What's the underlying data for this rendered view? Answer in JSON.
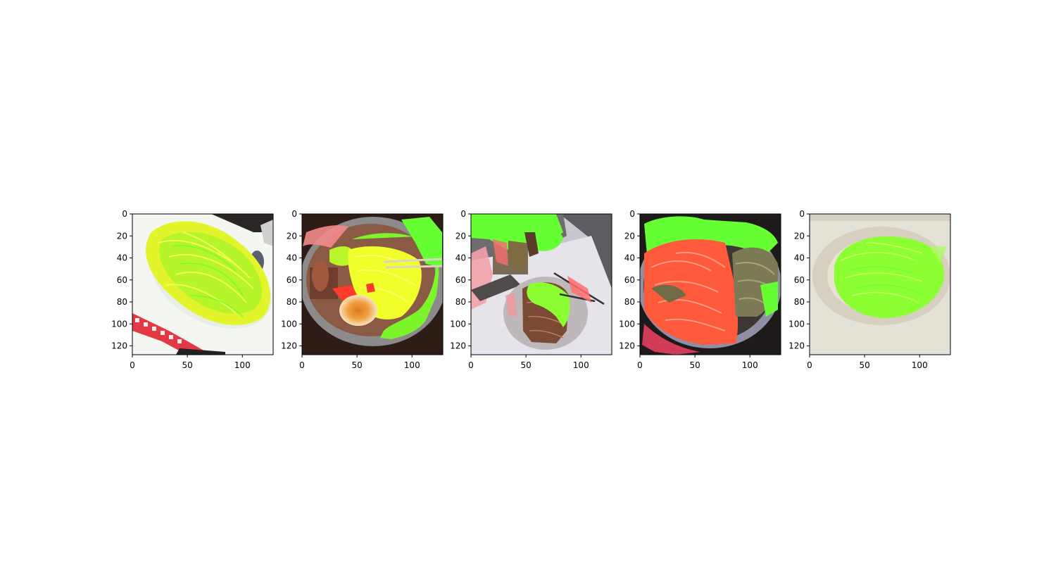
{
  "figure": {
    "panels": [
      {
        "id": "panel-1",
        "xticks": [
          "0",
          "50",
          "100"
        ],
        "yticks": [
          "0",
          "20",
          "40",
          "60",
          "80",
          "100",
          "120"
        ],
        "scene": "white plate of noodles with yellow-green segmentation overlay, red-white checkered cloth at lower left"
      },
      {
        "id": "panel-2",
        "xticks": [
          "0",
          "50",
          "100"
        ],
        "yticks": [
          "0",
          "20",
          "40",
          "60",
          "80",
          "100",
          "120"
        ],
        "scene": "bowl of ramen with halved egg, yellow-green overlay on noodles and red overlay on broth"
      },
      {
        "id": "panel-3",
        "xticks": [
          "0",
          "50",
          "100"
        ],
        "yticks": [
          "0",
          "20",
          "40",
          "60",
          "80",
          "100",
          "120"
        ],
        "scene": "table top view with a plate of pasta, green overlay patches and pink overlay at left edge"
      },
      {
        "id": "panel-4",
        "xticks": [
          "0",
          "50",
          "100"
        ],
        "yticks": [
          "0",
          "20",
          "40",
          "60",
          "80",
          "100",
          "120"
        ],
        "scene": "bowl with red pasta on left and green-brown noodles on right, green overlay at top"
      },
      {
        "id": "panel-5",
        "xticks": [
          "0",
          "50",
          "100"
        ],
        "yticks": [
          "0",
          "20",
          "40",
          "60",
          "80",
          "100",
          "120"
        ],
        "scene": "beige plate with noodles covered by bright green overlay"
      }
    ],
    "colors": {
      "overlay_green": "#66ff33",
      "overlay_yellow": "#e6ff2a",
      "overlay_red": "#ff4433",
      "axis": "#000000"
    }
  }
}
